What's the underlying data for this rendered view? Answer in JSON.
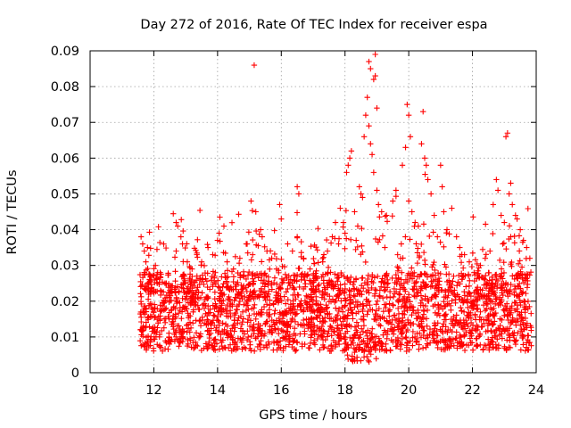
{
  "chart_data": {
    "type": "scatter",
    "title": "Day 272 of 2016, Rate Of TEC Index for receiver espa",
    "xlabel": "GPS time / hours",
    "ylabel": "ROTI / TECUs",
    "xlim": [
      10,
      24
    ],
    "ylim": [
      0,
      0.09
    ],
    "xticks": [
      10,
      12,
      14,
      16,
      18,
      20,
      22,
      24
    ],
    "xtick_labels": [
      "10",
      "12",
      "14",
      "16",
      "18",
      "20",
      "22",
      "24"
    ],
    "yticks": [
      0,
      0.01,
      0.02,
      0.03,
      0.04,
      0.05,
      0.06,
      0.07,
      0.08,
      0.09
    ],
    "ytick_labels": [
      "0",
      "0.01",
      "0.02",
      "0.03",
      "0.04",
      "0.05",
      "0.06",
      "0.07",
      "0.08",
      "0.09"
    ],
    "grid": true,
    "marker": "+",
    "color": "#ff0000",
    "series": [
      {
        "name": "ROTI",
        "points": [
          [
            11.6,
            0.038
          ],
          [
            11.65,
            0.036
          ],
          [
            11.7,
            0.034
          ],
          [
            11.75,
            0.031
          ],
          [
            11.8,
            0.035
          ],
          [
            11.7,
            0.028
          ],
          [
            11.8,
            0.025
          ],
          [
            11.9,
            0.022
          ],
          [
            12.05,
            0.03
          ],
          [
            12.2,
            0.028
          ],
          [
            12.35,
            0.025
          ],
          [
            12.5,
            0.023
          ],
          [
            12.7,
            0.042
          ],
          [
            12.75,
            0.041
          ],
          [
            12.7,
            0.034
          ],
          [
            12.85,
            0.038
          ],
          [
            12.9,
            0.036
          ],
          [
            13.05,
            0.031
          ],
          [
            13.2,
            0.029
          ],
          [
            13.35,
            0.033
          ],
          [
            13.5,
            0.031
          ],
          [
            13.7,
            0.035
          ],
          [
            13.85,
            0.033
          ],
          [
            14.0,
            0.037
          ],
          [
            14.05,
            0.039
          ],
          [
            14.2,
            0.041
          ],
          [
            14.3,
            0.031
          ],
          [
            14.5,
            0.029
          ],
          [
            14.7,
            0.032
          ],
          [
            14.9,
            0.036
          ],
          [
            15.05,
            0.048
          ],
          [
            15.1,
            0.033
          ],
          [
            15.2,
            0.045
          ],
          [
            15.15,
            0.086
          ],
          [
            15.35,
            0.04
          ],
          [
            15.4,
            0.038
          ],
          [
            15.55,
            0.034
          ],
          [
            15.7,
            0.032
          ],
          [
            15.85,
            0.029
          ],
          [
            15.95,
            0.047
          ],
          [
            16.0,
            0.043
          ],
          [
            16.2,
            0.036
          ],
          [
            16.35,
            0.034
          ],
          [
            16.5,
            0.052
          ],
          [
            16.55,
            0.05
          ],
          [
            16.5,
            0.038
          ],
          [
            16.7,
            0.032
          ],
          [
            16.9,
            0.029
          ],
          [
            17.1,
            0.027
          ],
          [
            17.3,
            0.031
          ],
          [
            17.45,
            0.034
          ],
          [
            17.6,
            0.038
          ],
          [
            17.7,
            0.042
          ],
          [
            17.85,
            0.046
          ],
          [
            17.95,
            0.042
          ],
          [
            18.0,
            0.039
          ],
          [
            18.05,
            0.056
          ],
          [
            18.1,
            0.058
          ],
          [
            18.15,
            0.06
          ],
          [
            18.2,
            0.062
          ],
          [
            18.3,
            0.045
          ],
          [
            18.4,
            0.041
          ],
          [
            18.45,
            0.052
          ],
          [
            18.5,
            0.05
          ],
          [
            18.55,
            0.049
          ],
          [
            18.6,
            0.066
          ],
          [
            18.65,
            0.072
          ],
          [
            18.7,
            0.077
          ],
          [
            18.75,
            0.087
          ],
          [
            18.8,
            0.085
          ],
          [
            18.75,
            0.069
          ],
          [
            18.8,
            0.064
          ],
          [
            18.85,
            0.061
          ],
          [
            18.9,
            0.082
          ],
          [
            18.95,
            0.089
          ],
          [
            18.95,
            0.083
          ],
          [
            19.0,
            0.074
          ],
          [
            18.9,
            0.056
          ],
          [
            19.0,
            0.051
          ],
          [
            19.05,
            0.047
          ],
          [
            19.15,
            0.045
          ],
          [
            19.3,
            0.044
          ],
          [
            19.5,
            0.048
          ],
          [
            19.6,
            0.051
          ],
          [
            19.8,
            0.058
          ],
          [
            19.9,
            0.063
          ],
          [
            19.95,
            0.075
          ],
          [
            20.0,
            0.072
          ],
          [
            20.05,
            0.066
          ],
          [
            20.0,
            0.048
          ],
          [
            20.1,
            0.045
          ],
          [
            20.2,
            0.042
          ],
          [
            20.3,
            0.041
          ],
          [
            20.4,
            0.064
          ],
          [
            20.45,
            0.073
          ],
          [
            20.5,
            0.06
          ],
          [
            20.55,
            0.058
          ],
          [
            20.6,
            0.054
          ],
          [
            20.7,
            0.05
          ],
          [
            20.8,
            0.044
          ],
          [
            20.9,
            0.038
          ],
          [
            21.0,
            0.058
          ],
          [
            21.05,
            0.052
          ],
          [
            21.1,
            0.045
          ],
          [
            21.2,
            0.04
          ],
          [
            21.35,
            0.046
          ],
          [
            21.5,
            0.038
          ],
          [
            21.6,
            0.035
          ],
          [
            21.75,
            0.033
          ],
          [
            21.9,
            0.031
          ],
          [
            22.05,
            0.028
          ],
          [
            22.25,
            0.03
          ],
          [
            22.4,
            0.032
          ],
          [
            22.55,
            0.034
          ],
          [
            22.65,
            0.047
          ],
          [
            22.75,
            0.054
          ],
          [
            22.8,
            0.051
          ],
          [
            22.9,
            0.044
          ],
          [
            23.0,
            0.042
          ],
          [
            23.05,
            0.066
          ],
          [
            23.1,
            0.067
          ],
          [
            23.15,
            0.05
          ],
          [
            23.2,
            0.053
          ],
          [
            23.25,
            0.047
          ],
          [
            23.35,
            0.044
          ],
          [
            23.4,
            0.043
          ],
          [
            23.5,
            0.04
          ],
          [
            23.6,
            0.037
          ],
          [
            23.7,
            0.035
          ],
          [
            23.8,
            0.032
          ],
          [
            23.2,
            0.038
          ],
          [
            22.95,
            0.036
          ],
          [
            19.25,
            0.035
          ],
          [
            18.35,
            0.037
          ],
          [
            17.8,
            0.036
          ]
        ],
        "dense_band": {
          "x_range": [
            11.55,
            23.85
          ],
          "y_typical_range": [
            0.006,
            0.028
          ],
          "approx_points": 2600
        }
      }
    ]
  }
}
